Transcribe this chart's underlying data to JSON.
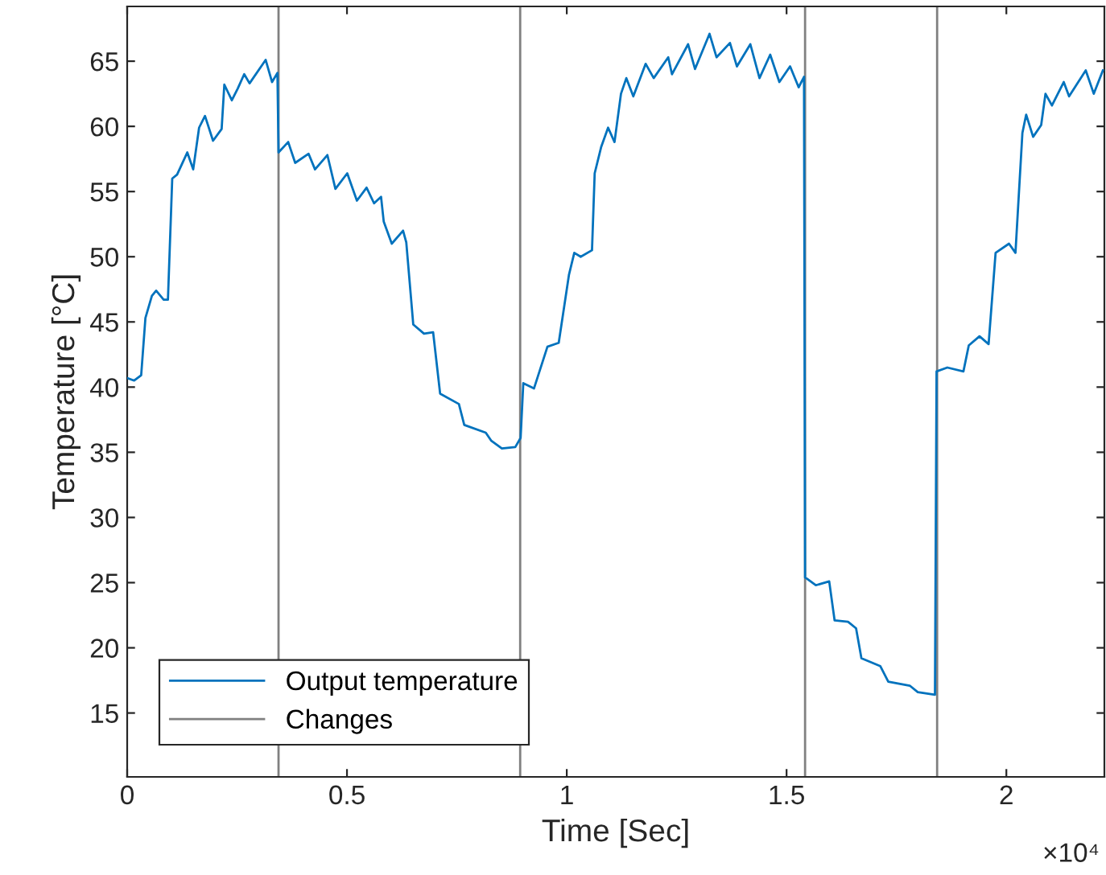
{
  "chart_data": {
    "type": "line",
    "xlabel": "Time [Sec]",
    "ylabel": "Temperature [°C]",
    "xlim": [
      0,
      2.223
    ],
    "ylim": [
      10.1,
      69.2
    ],
    "xticks": [
      0,
      0.5,
      1,
      1.5,
      2
    ],
    "yticks": [
      15,
      20,
      25,
      30,
      35,
      40,
      45,
      50,
      55,
      60,
      65
    ],
    "annotations": [
      "×10⁴"
    ],
    "grid": false,
    "legend": "bottom left",
    "marker": "none",
    "line_style": "solid",
    "series": [
      {
        "name": "Output temperature",
        "color": "#0072bd",
        "x": [
          0,
          0.0159,
          0.0318,
          0.0415,
          0.0562,
          0.0659,
          0.083,
          0.0927,
          0.1025,
          0.1135,
          0.1367,
          0.1502,
          0.1636,
          0.177,
          0.1953,
          0.2149,
          0.221,
          0.2381,
          0.2515,
          0.2662,
          0.2784,
          0.315,
          0.3296,
          0.3418,
          0.3443,
          0.3663,
          0.3822,
          0.4127,
          0.4273,
          0.4554,
          0.4737,
          0.5006,
          0.5226,
          0.5446,
          0.5616,
          0.5775,
          0.5836,
          0.6019,
          0.6276,
          0.6349,
          0.6508,
          0.6752,
          0.696,
          0.7119,
          0.7546,
          0.7668,
          0.8157,
          0.8279,
          0.8524,
          0.8829,
          0.895,
          0.9011,
          0.9255,
          0.956,
          0.9817,
          1.0049,
          1.0171,
          1.0317,
          1.0574,
          1.0635,
          1.0781,
          1.094,
          1.1086,
          1.1233,
          1.1355,
          1.1514,
          1.1795,
          1.1978,
          1.2308,
          1.2393,
          1.276,
          1.2918,
          1.3248,
          1.3407,
          1.3712,
          1.3871,
          1.4176,
          1.4384,
          1.4628,
          1.4836,
          1.508,
          1.5275,
          1.5397,
          1.5421,
          1.5665,
          1.597,
          1.6093,
          1.6398,
          1.6581,
          1.6703,
          1.7131,
          1.7314,
          1.7802,
          1.7985,
          1.8376,
          1.8412,
          1.8657,
          1.9023,
          1.9145,
          1.9389,
          1.9596,
          1.9755,
          2.006,
          2.0207,
          2.0365,
          2.0451,
          2.0609,
          2.0792,
          2.089,
          2.1037,
          2.1305,
          2.1427,
          2.1806,
          2.1989,
          2.2196
        ],
        "values": [
          40.7,
          40.5,
          40.9,
          45.3,
          47.0,
          47.4,
          46.7,
          46.7,
          56.0,
          56.3,
          58.0,
          56.7,
          59.9,
          60.8,
          58.9,
          59.8,
          63.2,
          62.0,
          62.9,
          64.0,
          63.3,
          65.1,
          63.4,
          64.1,
          58.0,
          58.8,
          57.2,
          57.9,
          56.7,
          57.8,
          55.2,
          56.4,
          54.3,
          55.3,
          54.1,
          54.6,
          52.7,
          51.0,
          52.0,
          51.1,
          44.8,
          44.1,
          44.2,
          39.5,
          38.7,
          37.1,
          36.5,
          35.9,
          35.3,
          35.4,
          36.1,
          40.3,
          39.9,
          43.1,
          43.4,
          48.6,
          50.3,
          50.0,
          50.5,
          56.4,
          58.4,
          59.9,
          58.8,
          62.5,
          63.7,
          62.3,
          64.8,
          63.7,
          65.3,
          64.0,
          66.3,
          64.4,
          67.1,
          65.3,
          66.4,
          64.6,
          66.3,
          63.7,
          65.5,
          63.4,
          64.6,
          63.0,
          63.8,
          25.4,
          24.8,
          25.1,
          22.1,
          22.0,
          21.5,
          19.2,
          18.6,
          17.4,
          17.1,
          16.6,
          16.4,
          41.2,
          41.5,
          41.2,
          43.2,
          43.9,
          43.3,
          50.3,
          51.0,
          50.3,
          59.5,
          60.9,
          59.2,
          60.1,
          62.5,
          61.6,
          63.4,
          62.3,
          64.3,
          62.5,
          64.3
        ]
      }
    ],
    "ref_lines": [
      {
        "axis": "x",
        "value": 0.3443,
        "label": "Changes",
        "color": "#808080"
      },
      {
        "axis": "x",
        "value": 0.894,
        "label": null,
        "color": "#808080"
      },
      {
        "axis": "x",
        "value": 1.5421,
        "label": null,
        "color": "#808080"
      },
      {
        "axis": "x",
        "value": 1.8425,
        "label": null,
        "color": "#808080"
      }
    ]
  }
}
